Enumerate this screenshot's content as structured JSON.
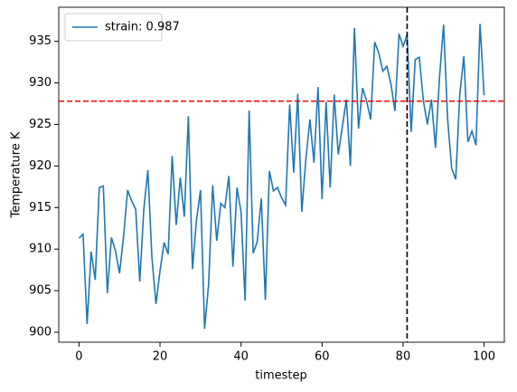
{
  "chart_data": {
    "type": "line",
    "xlabel": "timestep",
    "ylabel": "Temperature K",
    "x": [
      0,
      1,
      2,
      3,
      4,
      5,
      6,
      7,
      8,
      9,
      10,
      11,
      12,
      13,
      14,
      15,
      16,
      17,
      18,
      19,
      20,
      21,
      22,
      23,
      24,
      25,
      26,
      27,
      28,
      29,
      30,
      31,
      32,
      33,
      34,
      35,
      36,
      37,
      38,
      39,
      40,
      41,
      42,
      43,
      44,
      45,
      46,
      47,
      48,
      49,
      50,
      51,
      52,
      53,
      54,
      55,
      56,
      57,
      58,
      59,
      60,
      61,
      62,
      63,
      64,
      65,
      66,
      67,
      68,
      69,
      70,
      71,
      72,
      73,
      74,
      75,
      76,
      77,
      78,
      79,
      80,
      81,
      82,
      83,
      84,
      85,
      86,
      87,
      88,
      89,
      90,
      91,
      92,
      93,
      94,
      95,
      96,
      97,
      98,
      99,
      100
    ],
    "series": [
      {
        "name": "strain: 0.987",
        "color": "#1f77b4",
        "values": [
          911.3,
          911.8,
          901.0,
          909.7,
          906.3,
          917.4,
          917.6,
          904.7,
          911.4,
          909.8,
          907.1,
          911.5,
          917.1,
          915.8,
          914.8,
          906.1,
          914.8,
          919.5,
          909.0,
          903.4,
          907.4,
          910.8,
          909.4,
          921.2,
          912.9,
          918.6,
          913.9,
          926.0,
          907.6,
          913.5,
          917.1,
          900.4,
          905.8,
          917.7,
          911.0,
          915.5,
          915.0,
          918.8,
          907.9,
          917.4,
          914.5,
          903.8,
          926.7,
          909.5,
          910.9,
          916.1,
          903.9,
          919.4,
          917.0,
          917.4,
          916.2,
          915.3,
          927.4,
          919.2,
          928.7,
          914.5,
          920.8,
          925.6,
          920.4,
          929.5,
          916.0,
          927.7,
          917.4,
          928.6,
          921.4,
          924.7,
          928.0,
          920.0,
          936.6,
          924.5,
          929.4,
          927.8,
          925.6,
          934.9,
          933.6,
          931.4,
          932.0,
          929.9,
          926.6,
          935.9,
          934.4,
          935.8,
          924.1,
          932.8,
          933.1,
          927.9,
          925.0,
          928.0,
          922.2,
          930.7,
          937.0,
          925.6,
          919.7,
          918.4,
          928.6,
          933.2,
          922.9,
          924.2,
          922.5,
          937.1,
          928.5
        ]
      }
    ],
    "hline": {
      "value": 927.8,
      "color": "red"
    },
    "vline": {
      "value": 81,
      "color": "black"
    },
    "xlim": [
      -5,
      105
    ],
    "xticks": [
      0,
      20,
      40,
      60,
      80,
      100
    ],
    "ylim": [
      898.8,
      939.1
    ],
    "yticks": [
      900,
      905,
      910,
      915,
      920,
      925,
      930,
      935
    ],
    "legend": "upper left"
  }
}
